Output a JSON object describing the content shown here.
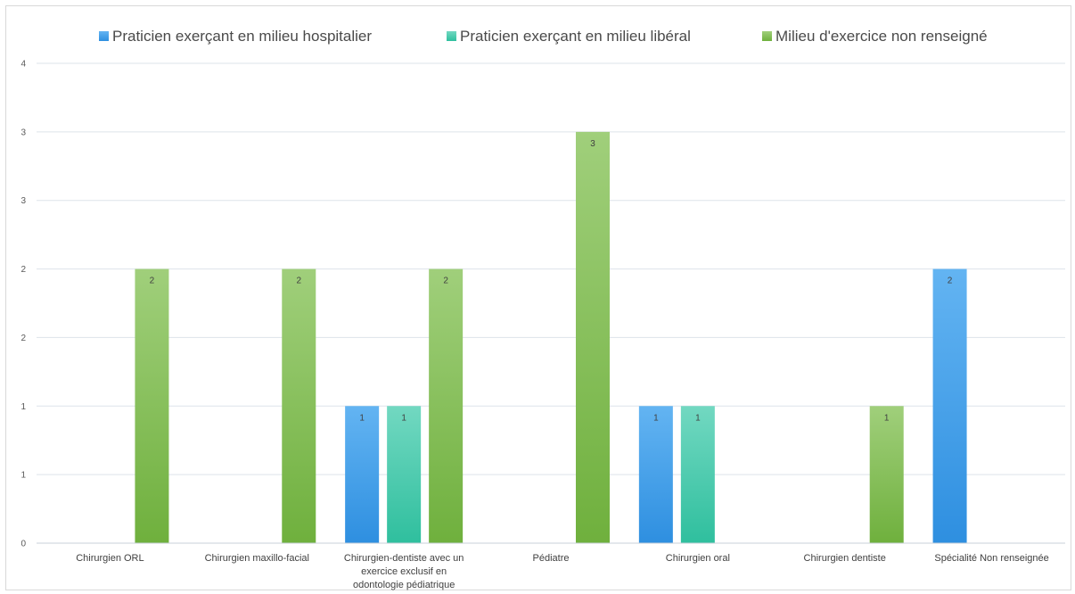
{
  "chart_data": {
    "type": "bar",
    "title": "",
    "xlabel": "",
    "ylabel": "",
    "ylim": [
      0,
      3.5
    ],
    "ytick_values": [
      0,
      0.5,
      1,
      1.5,
      2,
      2.5,
      3,
      3.5
    ],
    "ytick_labels": [
      "0",
      "1",
      "1",
      "2",
      "2",
      "3",
      "3",
      "4"
    ],
    "grid": true,
    "legend_position": "top",
    "categories": [
      [
        "Chirurgien ORL"
      ],
      [
        "Chirurgien maxillo-facial"
      ],
      [
        "Chirurgien-dentiste avec un",
        "exercice exclusif en",
        "odontologie pédiatrique"
      ],
      [
        "Pédiatre"
      ],
      [
        "Chirurgien oral"
      ],
      [
        "Chirurgien dentiste"
      ],
      [
        "Spécialité Non renseignée"
      ]
    ],
    "series": [
      {
        "name": "Praticien exerçant en milieu hospitalier",
        "color": "#2e8fe0",
        "color_light": "#63b4f2",
        "values": [
          null,
          null,
          1,
          null,
          1,
          null,
          2
        ],
        "labels": [
          "",
          "",
          "1",
          "",
          "1",
          "",
          "2"
        ]
      },
      {
        "name": "Praticien exerçant en milieu libéral",
        "color": "#2fbf9e",
        "color_light": "#72d8c1",
        "values": [
          null,
          null,
          1,
          null,
          1,
          null,
          null
        ],
        "labels": [
          "",
          "",
          "1",
          "",
          "1",
          "",
          ""
        ]
      },
      {
        "name": "Milieu d'exercice non renseigné",
        "color": "#6fb03d",
        "color_light": "#a0cf7b",
        "values": [
          2,
          2,
          2,
          3,
          null,
          1,
          null
        ],
        "labels": [
          "2",
          "2",
          "2",
          "3",
          "",
          "1",
          ""
        ]
      }
    ]
  }
}
